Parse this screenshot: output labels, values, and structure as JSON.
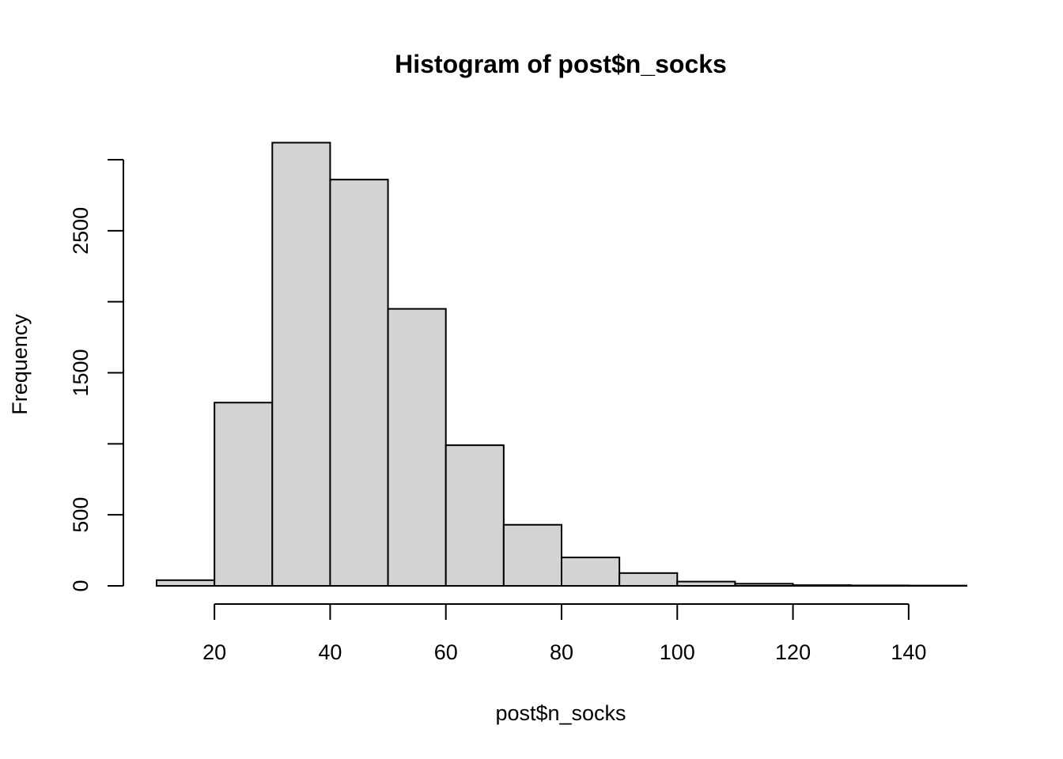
{
  "chart_data": {
    "type": "bar",
    "title": "Histogram of post$n_socks",
    "xlabel": "post$n_socks",
    "ylabel": "Frequency",
    "bin_edges": [
      10,
      20,
      30,
      40,
      50,
      60,
      70,
      80,
      90,
      100,
      110,
      120,
      130,
      140,
      150
    ],
    "values": [
      40,
      1290,
      3120,
      2860,
      1950,
      990,
      430,
      200,
      90,
      30,
      15,
      5,
      3,
      2
    ],
    "xlim": [
      10,
      150
    ],
    "ylim": [
      0,
      3000
    ],
    "x_ticks": [
      20,
      40,
      60,
      80,
      100,
      120,
      140
    ],
    "y_ticks": [
      0,
      500,
      1000,
      1500,
      2000,
      2500,
      3000
    ],
    "y_tick_labels": [
      "0",
      "500",
      "",
      "1500",
      "",
      "2500",
      ""
    ],
    "bar_fill": "#d3d3d3",
    "bar_stroke": "#000000",
    "grid": false,
    "legend": "none"
  }
}
